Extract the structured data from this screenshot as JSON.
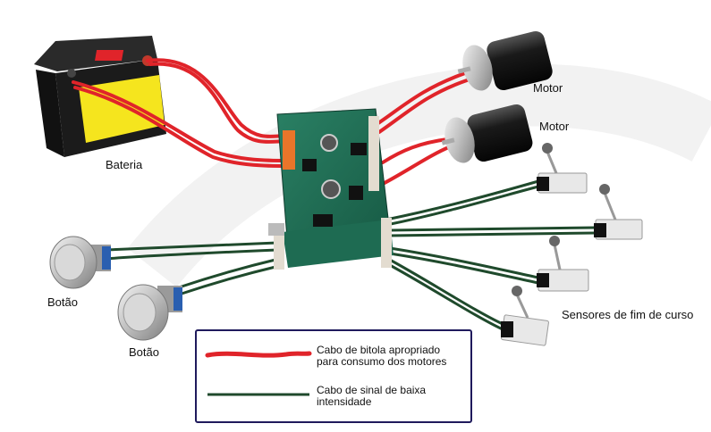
{
  "labels": {
    "battery": "Bateria",
    "motor_1": "Motor",
    "motor_2": "Motor",
    "button_1": "Botão",
    "button_2": "Botão",
    "limit_sensors": "Sensores de fim de curso"
  },
  "legend": {
    "power_line_1": "Cabo de bitola apropriado",
    "power_line_2": "para consumo dos motores",
    "signal_line_1": "Cabo de sinal de baixa",
    "signal_line_2": "intensidade"
  },
  "colors": {
    "power_cable": "#e0242a",
    "signal_cable": "#1f4a2c",
    "board": "#1f6e55",
    "battery_body": "#1b1b1b",
    "battery_label": "#f5e51e",
    "legend_border": "#1f1a5c"
  }
}
